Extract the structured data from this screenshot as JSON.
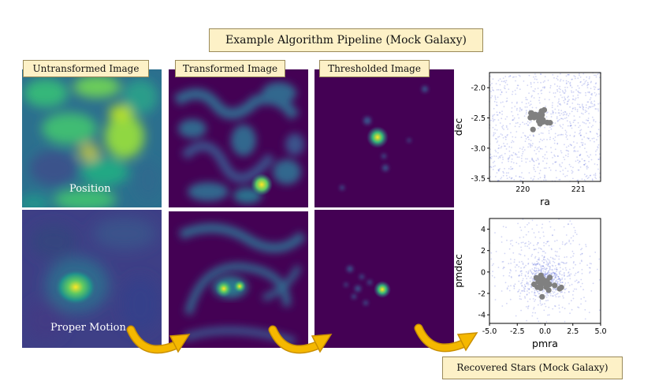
{
  "title": "Example Algorithm Pipeline (Mock Galaxy)",
  "columns": [
    {
      "label": "Untransformed Image"
    },
    {
      "label": "Transformed Image"
    },
    {
      "label": "Thresholded Image"
    }
  ],
  "row_labels": {
    "position": "Position",
    "proper_motion": "Proper Motion"
  },
  "footer": "Recovered Stars (Mock Galaxy)",
  "colors": {
    "label_bg": "#fdf1c7",
    "arrow": "#f5b800",
    "field_stars": "#4b5bd6",
    "recovered": "#808080"
  },
  "chart_data": [
    {
      "type": "scatter",
      "xlabel": "ra",
      "ylabel": "dec",
      "xlim": [
        219.4,
        221.4
      ],
      "ylim": [
        -3.55,
        -1.75
      ],
      "xticks": [
        "220",
        "221"
      ],
      "yticks": [
        "-2.0",
        "-2.5",
        "-3.0",
        "-3.5"
      ],
      "series": [
        {
          "role": "field",
          "points": "uniform over axes"
        },
        {
          "role": "recovered",
          "center": [
            220.3,
            -2.5
          ],
          "spread": [
            0.12,
            0.09
          ],
          "count": 22
        }
      ]
    },
    {
      "type": "scatter",
      "xlabel": "pmra",
      "ylabel": "pmdec",
      "xlim": [
        -5.0,
        5.0
      ],
      "ylim": [
        -4.8,
        5.0
      ],
      "xticks": [
        "-5.0",
        "-2.5",
        "0.0",
        "2.5",
        "5.0"
      ],
      "yticks": [
        "4",
        "2",
        "0",
        "-2",
        "-4"
      ],
      "series": [
        {
          "role": "field",
          "points": "concentrated near origin"
        },
        {
          "role": "recovered",
          "center": [
            0.0,
            -1.0
          ],
          "spread": [
            0.5,
            0.45
          ],
          "count": 24
        }
      ]
    }
  ]
}
